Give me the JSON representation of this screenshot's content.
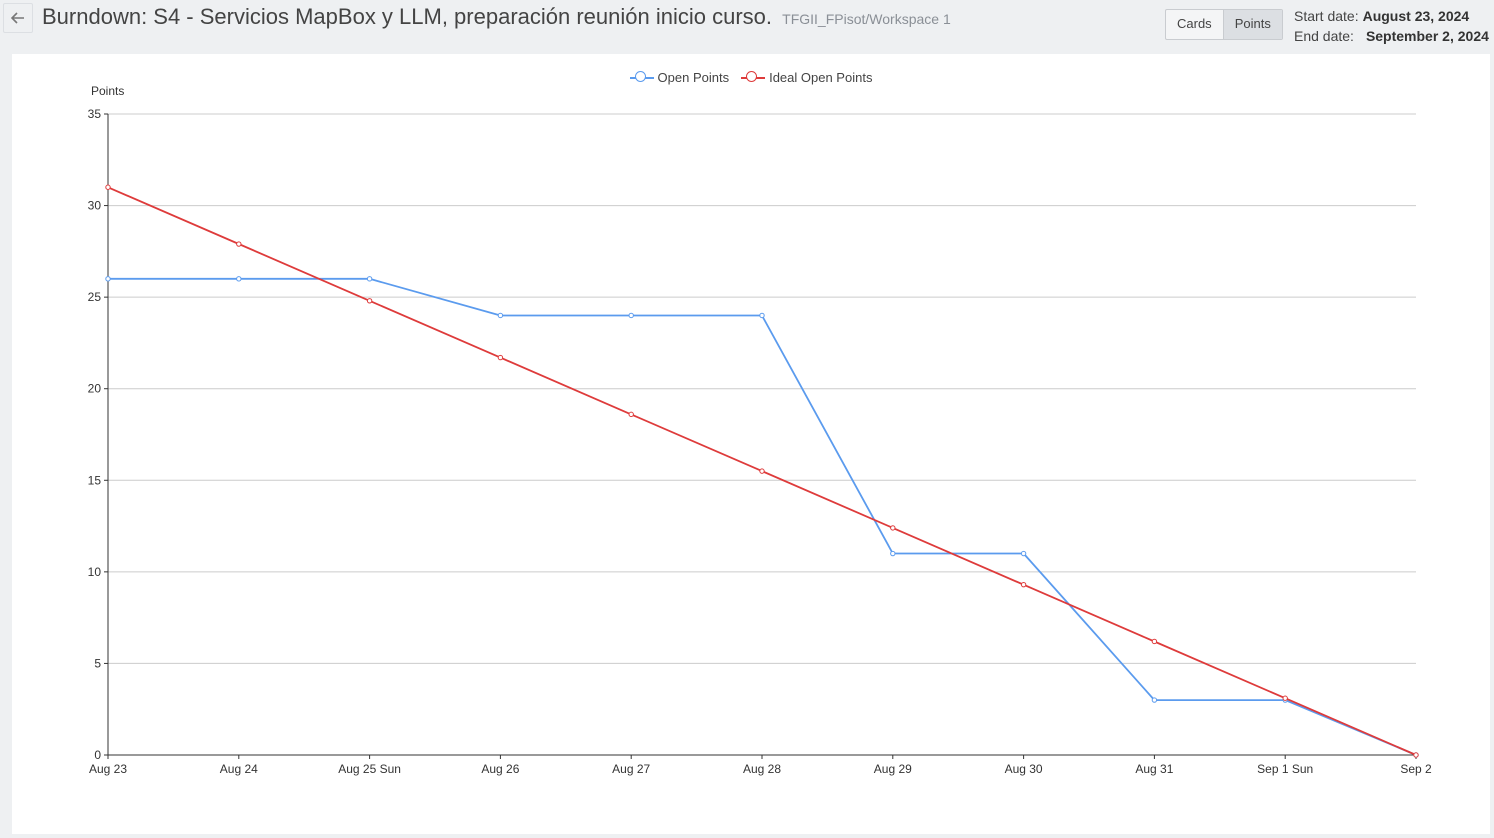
{
  "header": {
    "title": "Burndown: S4 - Servicios MapBox y LLM, preparación reunión inicio curso.",
    "workspace": "TFGII_FPisot/Workspace 1",
    "toggle": {
      "cards_label": "Cards",
      "points_label": "Points",
      "active": "Points"
    },
    "start_label": "Start date:",
    "start_value": "August 23, 2024",
    "end_label": "End date:",
    "end_value": "September 2, 2024"
  },
  "colors": {
    "open": "#5b9bee",
    "ideal": "#de3b3b",
    "grid": "#cccccc",
    "axis": "#333333"
  },
  "chart_data": {
    "type": "line",
    "title": "",
    "ylabel": "Points",
    "xlabel": "",
    "ylim": [
      0,
      35
    ],
    "yticks": [
      0,
      5,
      10,
      15,
      20,
      25,
      30,
      35
    ],
    "grid": true,
    "legend_position": "top-center",
    "categories": [
      "Aug 23",
      "Aug 24",
      "Aug 25 Sun",
      "Aug 26",
      "Aug 27",
      "Aug 28",
      "Aug 29",
      "Aug 30",
      "Aug 31",
      "Sep 1 Sun",
      "Sep 2"
    ],
    "series": [
      {
        "name": "Open Points",
        "color": "#5b9bee",
        "values": [
          26,
          26,
          26,
          24,
          24,
          24,
          11,
          11,
          3,
          3,
          0
        ]
      },
      {
        "name": "Ideal Open Points",
        "color": "#de3b3b",
        "values": [
          31,
          27.9,
          24.8,
          21.7,
          18.6,
          15.5,
          12.4,
          9.3,
          6.2,
          3.1,
          0
        ]
      }
    ]
  }
}
